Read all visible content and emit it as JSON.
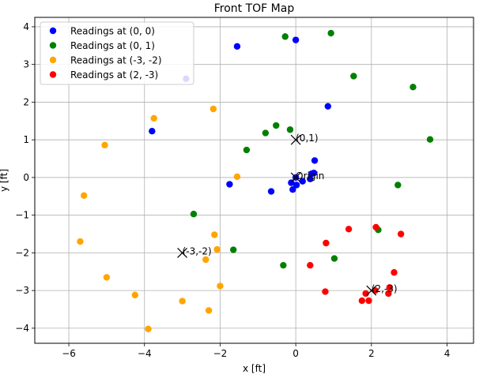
{
  "chart_data": {
    "type": "scatter",
    "title": "Front TOF Map",
    "xlabel": "x [ft]",
    "ylabel": "y [ft]",
    "xlim": [
      -6.9,
      4.7
    ],
    "ylim": [
      -4.4,
      4.25
    ],
    "xticks": [
      -6,
      -4,
      -2,
      0,
      2,
      4
    ],
    "yticks": [
      -4,
      -3,
      -2,
      -1,
      0,
      1,
      2,
      3,
      4
    ],
    "grid": true,
    "legend_position": "top-left",
    "series": [
      {
        "name": "Readings at (0, 0)",
        "color": "#0000ff",
        "points": [
          [
            0.0,
            3.65
          ],
          [
            -1.55,
            3.48
          ],
          [
            -2.9,
            2.62
          ],
          [
            0.85,
            1.89
          ],
          [
            -3.8,
            1.23
          ],
          [
            0.5,
            0.45
          ],
          [
            -1.75,
            -0.18
          ],
          [
            -0.65,
            -0.37
          ],
          [
            -0.08,
            -0.32
          ],
          [
            -0.12,
            -0.14
          ],
          [
            0.02,
            -0.2
          ],
          [
            0.18,
            -0.1
          ],
          [
            0.38,
            -0.04
          ],
          [
            0.42,
            0.1
          ],
          [
            0.48,
            0.12
          ],
          [
            0.0,
            0.0
          ]
        ]
      },
      {
        "name": "Readings at (0, 1)",
        "color": "#008000",
        "points": [
          [
            -0.28,
            3.74
          ],
          [
            0.93,
            3.83
          ],
          [
            1.53,
            2.69
          ],
          [
            3.1,
            2.4
          ],
          [
            3.55,
            1.01
          ],
          [
            -0.52,
            1.38
          ],
          [
            -0.8,
            1.18
          ],
          [
            -0.15,
            1.27
          ],
          [
            -1.3,
            0.73
          ],
          [
            2.7,
            -0.2
          ],
          [
            -2.7,
            -0.97
          ],
          [
            -1.65,
            -1.92
          ],
          [
            2.18,
            -1.39
          ],
          [
            1.02,
            -2.15
          ],
          [
            -0.33,
            -2.33
          ]
        ]
      },
      {
        "name": "Readings at (-3, -2)",
        "color": "#ffa500",
        "points": [
          [
            -3.75,
            1.57
          ],
          [
            -2.18,
            1.82
          ],
          [
            -5.05,
            0.86
          ],
          [
            -1.55,
            0.02
          ],
          [
            -5.6,
            -0.48
          ],
          [
            -5.7,
            -1.7
          ],
          [
            -2.15,
            -1.52
          ],
          [
            -2.08,
            -1.91
          ],
          [
            -2.38,
            -2.18
          ],
          [
            -5.0,
            -2.65
          ],
          [
            -2.0,
            -2.88
          ],
          [
            -4.25,
            -3.12
          ],
          [
            -3.0,
            -3.28
          ],
          [
            -2.3,
            -3.53
          ],
          [
            -3.9,
            -4.02
          ]
        ]
      },
      {
        "name": "Readings at (2, -3)",
        "color": "#ff0000",
        "points": [
          [
            2.12,
            -1.32
          ],
          [
            1.4,
            -1.37
          ],
          [
            2.78,
            -1.5
          ],
          [
            0.8,
            -1.74
          ],
          [
            0.38,
            -2.33
          ],
          [
            2.6,
            -2.52
          ],
          [
            0.78,
            -3.03
          ],
          [
            2.1,
            -3.0
          ],
          [
            2.48,
            -2.92
          ],
          [
            2.45,
            -3.08
          ],
          [
            1.85,
            -3.08
          ],
          [
            1.75,
            -3.27
          ],
          [
            1.93,
            -3.27
          ]
        ]
      }
    ],
    "markers": [
      {
        "label": "(0,1)",
        "x": 0,
        "y": 1
      },
      {
        "label": "Origin",
        "x": 0,
        "y": 0
      },
      {
        "label": "(-3,-2)",
        "x": -3,
        "y": -2
      },
      {
        "label": "(2,-3)",
        "x": 2,
        "y": -3
      }
    ]
  }
}
